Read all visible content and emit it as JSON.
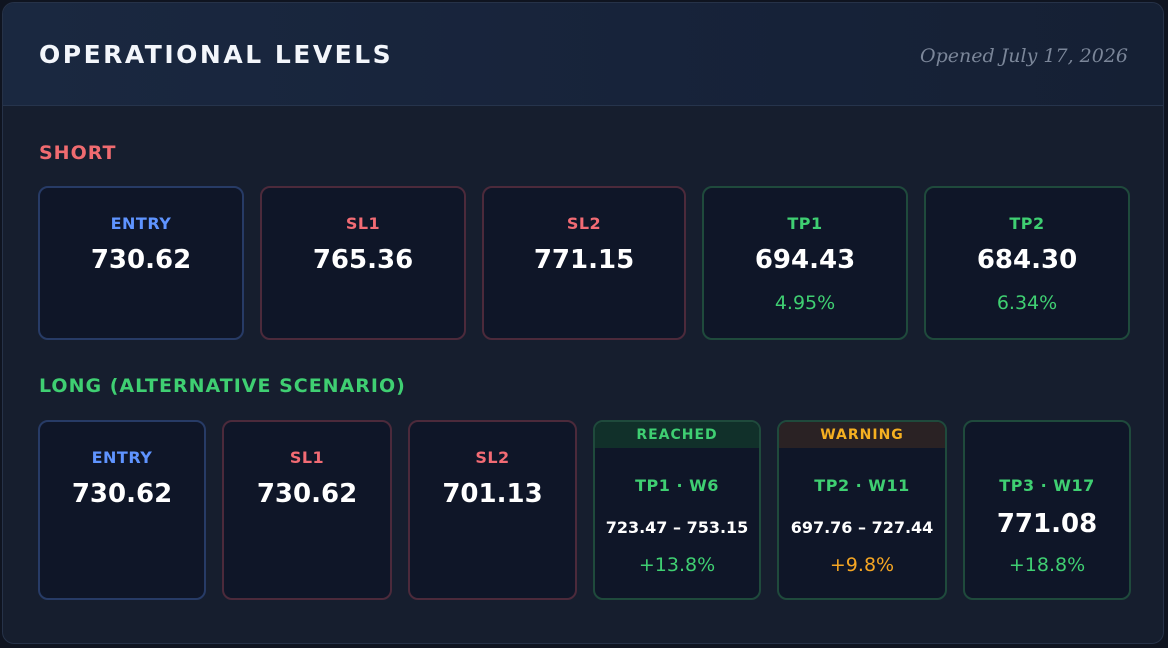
{
  "header": {
    "title": "OPERATIONAL LEVELS",
    "opened": "Opened July 17, 2026"
  },
  "short": {
    "label": "SHORT",
    "cards": [
      {
        "label": "ENTRY",
        "value": "730.62"
      },
      {
        "label": "SL1",
        "value": "765.36"
      },
      {
        "label": "SL2",
        "value": "771.15"
      },
      {
        "label": "TP1",
        "value": "694.43",
        "pct": "4.95%"
      },
      {
        "label": "TP2",
        "value": "684.30",
        "pct": "6.34%"
      }
    ]
  },
  "long": {
    "label": "LONG (ALTERNATIVE SCENARIO)",
    "cards": [
      {
        "label": "ENTRY",
        "value": "730.62"
      },
      {
        "label": "SL1",
        "value": "730.62"
      },
      {
        "label": "SL2",
        "value": "701.13"
      },
      {
        "status": "REACHED",
        "label": "TP1 · W6",
        "range": "723.47 – 753.15",
        "pct": "+13.8%"
      },
      {
        "status": "WARNING",
        "label": "TP2 · W11",
        "range": "697.76 – 727.44",
        "pct": "+9.8%"
      },
      {
        "label": "TP3 · W17",
        "value": "771.08",
        "pct": "+18.8%"
      }
    ]
  },
  "colors": {
    "background": "#161e2e",
    "entry_accent": "#5f94ff",
    "stop_accent": "#f26b74",
    "target_accent": "#3fcf72",
    "warning_accent": "#f5a623"
  }
}
